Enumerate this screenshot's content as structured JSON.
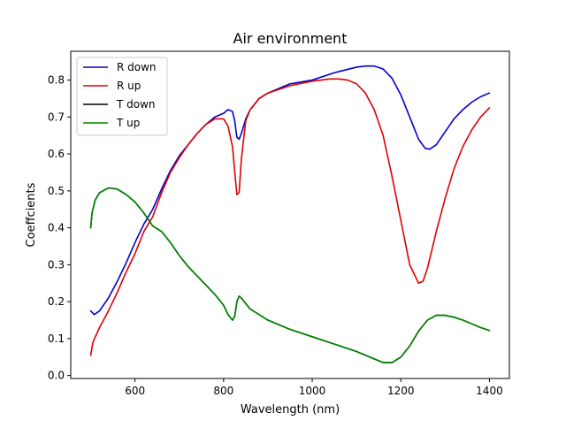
{
  "chart_data": {
    "type": "line",
    "title": "Air environment",
    "xlabel": "Wavelength (nm)",
    "ylabel": "Coeffcients",
    "xlim": [
      455,
      1445
    ],
    "ylim": [
      -0.008,
      0.878
    ],
    "xticks": [
      600,
      800,
      1000,
      1200,
      1400
    ],
    "yticks": [
      0.0,
      0.1,
      0.2,
      0.3,
      0.4,
      0.5,
      0.6,
      0.7,
      0.8
    ],
    "grid": false,
    "legend": "top-left",
    "series": [
      {
        "name": "R down",
        "color": "#0000cc",
        "x": [
          500,
          508,
          520,
          540,
          560,
          580,
          600,
          620,
          640,
          660,
          680,
          700,
          720,
          740,
          760,
          780,
          800,
          810,
          820,
          825,
          830,
          835,
          840,
          850,
          860,
          880,
          900,
          950,
          1000,
          1050,
          1100,
          1120,
          1140,
          1160,
          1180,
          1200,
          1220,
          1240,
          1255,
          1265,
          1280,
          1300,
          1320,
          1340,
          1360,
          1380,
          1400
        ],
        "y": [
          0.175,
          0.165,
          0.175,
          0.21,
          0.255,
          0.305,
          0.36,
          0.41,
          0.45,
          0.505,
          0.555,
          0.595,
          0.625,
          0.655,
          0.68,
          0.7,
          0.71,
          0.72,
          0.715,
          0.69,
          0.645,
          0.64,
          0.655,
          0.695,
          0.72,
          0.75,
          0.765,
          0.79,
          0.8,
          0.82,
          0.835,
          0.838,
          0.838,
          0.83,
          0.805,
          0.76,
          0.7,
          0.64,
          0.615,
          0.613,
          0.625,
          0.66,
          0.695,
          0.72,
          0.74,
          0.755,
          0.765
        ]
      },
      {
        "name": "R up",
        "color": "#dd0000",
        "x": [
          500,
          505,
          520,
          540,
          560,
          580,
          600,
          620,
          640,
          660,
          680,
          700,
          720,
          740,
          760,
          780,
          800,
          810,
          820,
          826,
          830,
          835,
          840,
          850,
          860,
          880,
          900,
          950,
          1000,
          1040,
          1060,
          1080,
          1100,
          1120,
          1140,
          1160,
          1180,
          1200,
          1220,
          1240,
          1250,
          1260,
          1280,
          1300,
          1320,
          1340,
          1360,
          1380,
          1400
        ],
        "y": [
          0.055,
          0.09,
          0.13,
          0.175,
          0.225,
          0.28,
          0.33,
          0.39,
          0.43,
          0.495,
          0.55,
          0.59,
          0.625,
          0.655,
          0.68,
          0.695,
          0.695,
          0.675,
          0.62,
          0.54,
          0.49,
          0.495,
          0.585,
          0.69,
          0.72,
          0.75,
          0.765,
          0.785,
          0.797,
          0.803,
          0.803,
          0.8,
          0.79,
          0.765,
          0.72,
          0.65,
          0.54,
          0.42,
          0.3,
          0.25,
          0.255,
          0.29,
          0.39,
          0.48,
          0.56,
          0.62,
          0.665,
          0.7,
          0.725
        ]
      },
      {
        "name": "T down",
        "color": "#000000",
        "x": [
          500,
          503,
          510,
          520,
          540,
          560,
          580,
          600,
          620,
          640,
          660,
          680,
          700,
          720,
          740,
          760,
          780,
          800,
          810,
          820,
          825,
          830,
          835,
          840,
          850,
          860,
          880,
          900,
          950,
          1000,
          1050,
          1100,
          1140,
          1160,
          1180,
          1200,
          1220,
          1240,
          1260,
          1280,
          1300,
          1320,
          1340,
          1360,
          1380,
          1400
        ],
        "y": [
          0.4,
          0.44,
          0.475,
          0.495,
          0.508,
          0.505,
          0.49,
          0.47,
          0.44,
          0.405,
          0.39,
          0.36,
          0.325,
          0.295,
          0.27,
          0.245,
          0.22,
          0.19,
          0.165,
          0.15,
          0.16,
          0.2,
          0.215,
          0.21,
          0.195,
          0.18,
          0.165,
          0.15,
          0.125,
          0.105,
          0.085,
          0.065,
          0.045,
          0.035,
          0.035,
          0.05,
          0.08,
          0.12,
          0.15,
          0.163,
          0.163,
          0.158,
          0.15,
          0.14,
          0.13,
          0.122
        ]
      },
      {
        "name": "T up",
        "color": "#008800",
        "x": [
          500,
          503,
          510,
          520,
          540,
          560,
          580,
          600,
          620,
          640,
          660,
          680,
          700,
          720,
          740,
          760,
          780,
          800,
          810,
          820,
          825,
          830,
          835,
          840,
          850,
          860,
          880,
          900,
          950,
          1000,
          1050,
          1100,
          1140,
          1160,
          1180,
          1200,
          1220,
          1240,
          1260,
          1280,
          1300,
          1320,
          1340,
          1360,
          1380,
          1400
        ],
        "y": [
          0.4,
          0.44,
          0.475,
          0.495,
          0.508,
          0.505,
          0.49,
          0.47,
          0.44,
          0.405,
          0.39,
          0.36,
          0.325,
          0.295,
          0.27,
          0.245,
          0.22,
          0.19,
          0.165,
          0.15,
          0.16,
          0.2,
          0.215,
          0.21,
          0.195,
          0.18,
          0.165,
          0.15,
          0.125,
          0.105,
          0.085,
          0.065,
          0.045,
          0.035,
          0.035,
          0.05,
          0.08,
          0.12,
          0.15,
          0.163,
          0.163,
          0.158,
          0.15,
          0.14,
          0.13,
          0.122
        ]
      }
    ]
  }
}
